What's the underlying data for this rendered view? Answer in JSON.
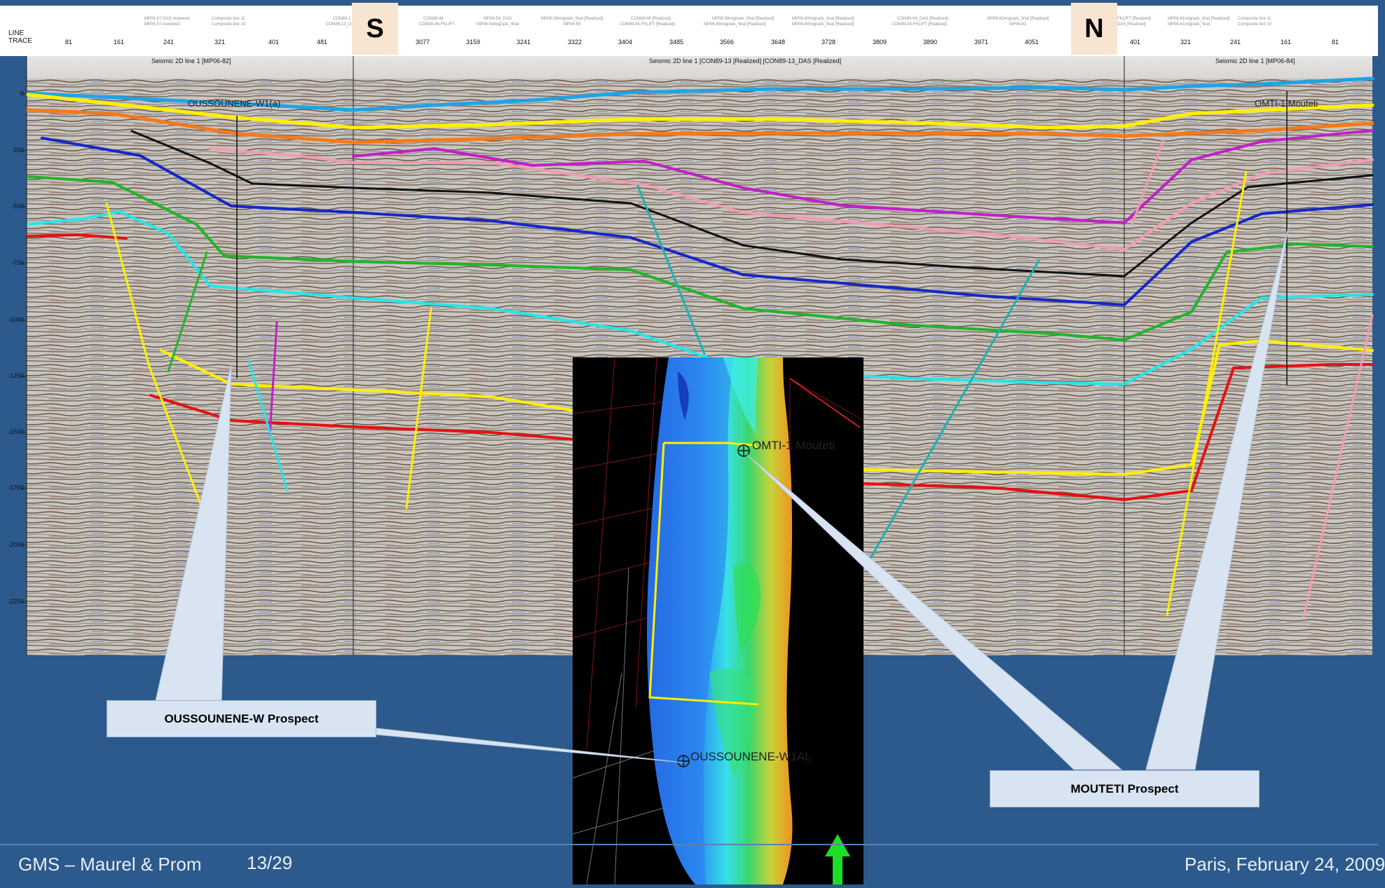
{
  "header": {
    "row_labels": [
      "LINE",
      "TRACE"
    ],
    "trace_labels": [
      "81",
      "161",
      "241",
      "321",
      "401",
      "481",
      "3077",
      "3159",
      "3241",
      "3322",
      "3404",
      "3485",
      "3566",
      "3648",
      "3728",
      "3809",
      "3890",
      "3971",
      "4051",
      "401",
      "321",
      "241",
      "161",
      "81"
    ],
    "panel_titles": [
      "Seismic 2D line 1 [MP06-82]",
      "Seismic 2D line 1 [CON89-13 [Realized] [CON89-13_DAS [Realized]",
      "Seismic 2D line 1 [MP06-84]"
    ],
    "small_annotations": [
      "MP06-57 DAS reviewed",
      "Composite line 11",
      "MP06-57 reviewed",
      "Composite line 10",
      "CON89-1",
      "CON89-13_D",
      "CON89-46",
      "CON89-46-FKLIFT",
      "MP06-54_DAS",
      "MP06-54migrads_final",
      "MP06-59migrads_final [Realized]",
      "MP06-56",
      "CON89-06 [Realized]",
      "CON89-06-FKLIFT [Realized]",
      "MP06-58migrads_final [Realized]",
      "MP06-58migrads_final [Realized]",
      "MP06-60migrads_final [Realized]",
      "MP06-60migrads_final [Realized]",
      "CON89-04_DAS [Realized]",
      "CON89-04-FKLIFT [Realized]",
      "MP06-62migrads_final [Realized]",
      "MP06-62",
      "FKLIFT [Realized]",
      "DAS [Realized]",
      "MP06-61migrads_final [Realized]",
      "MP06-61migrads_final",
      "Composite line 11",
      "Composite line 10"
    ]
  },
  "direction_markers": {
    "south": "S",
    "north": "N"
  },
  "depth_axis": {
    "ticks": [
      "0",
      "-250",
      "-500",
      "-750",
      "-1000",
      "-1250",
      "-1500",
      "-1750",
      "-2000",
      "-2250"
    ]
  },
  "section_labels": {
    "well_left": "OUSSOUNENE-W1(a)",
    "well_right": "OMTI-1 Mouteti"
  },
  "map": {
    "well_top": "OMTI-1 Mouteti",
    "well_bottom": "OUSSOUNENE-W1AL"
  },
  "callouts": {
    "left": "OUSSOUNENE-W Prospect",
    "right": "MOUTETI Prospect"
  },
  "footer": {
    "company": "GMS – Maurel & Prom",
    "page": "13/29",
    "location_date": "Paris, February 24, 2009"
  },
  "colors": {
    "background": "#2c5a8c",
    "horizon_light_blue": "#1fa3e6",
    "horizon_yellow": "#ffef00",
    "horizon_orange": "#f47a1c",
    "horizon_magenta": "#c21fc9",
    "horizon_pink": "#f29bb0",
    "horizon_black": "#111111",
    "horizon_blue": "#1428c8",
    "horizon_green": "#21b52a",
    "horizon_cyan": "#23e6ea",
    "horizon_red": "#e81010"
  }
}
